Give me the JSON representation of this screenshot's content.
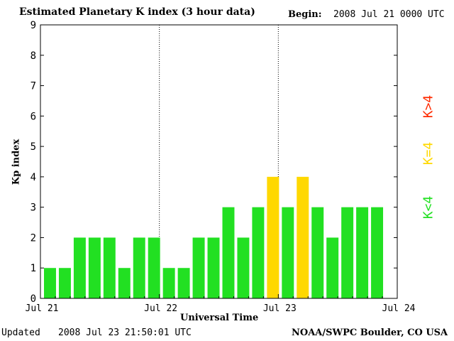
{
  "header": {
    "title": "Estimated Planetary K index (3 hour data)",
    "begin_label": "Begin:",
    "begin_value": "2008 Jul 21 0000 UTC"
  },
  "footer": {
    "updated_label": "Updated",
    "updated_value": "2008 Jul 23 21:50:01 UTC",
    "source": "NOAA/SWPC Boulder, CO USA"
  },
  "legend": {
    "above": {
      "label": "K>4",
      "color": "#ff2a00"
    },
    "equal": {
      "label": "K=4",
      "color": "#ffd800"
    },
    "below": {
      "label": "K<4",
      "color": "#22e022"
    }
  },
  "chart_data": {
    "type": "bar",
    "title": "Estimated Planetary K index (3 hour data)",
    "xlabel": "Universal Time",
    "ylabel": "Kp index",
    "ylim": [
      0,
      9
    ],
    "yticks": [
      0,
      1,
      2,
      3,
      4,
      5,
      6,
      7,
      8,
      9
    ],
    "xticks": [
      "Jul 21",
      "Jul 22",
      "Jul 23",
      "Jul 24"
    ],
    "day_dividers": [
      "Jul 22",
      "Jul 23"
    ],
    "interval": "3 hour",
    "values": [
      1,
      1,
      2,
      2,
      2,
      1,
      2,
      2,
      1,
      1,
      2,
      2,
      3,
      2,
      3,
      4,
      3,
      4,
      3,
      2,
      3,
      3,
      3
    ],
    "colors": {
      "below_4": "#22e022",
      "equal_4": "#ffd800",
      "above_4": "#ff2a00"
    }
  }
}
